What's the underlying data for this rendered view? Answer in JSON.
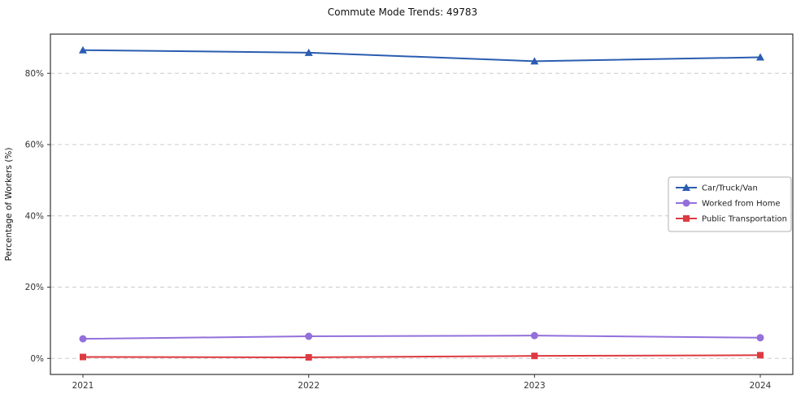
{
  "chart_data": {
    "type": "line",
    "title": "Commute Mode Trends: 49783",
    "xlabel": "",
    "ylabel": "Percentage of Workers (%)",
    "x": [
      2021,
      2022,
      2023,
      2024
    ],
    "xtick_labels": [
      "2021",
      "2022",
      "2023",
      "2024"
    ],
    "series": [
      {
        "name": "Car/Truck/Van",
        "values": [
          86.5,
          85.8,
          83.4,
          84.5
        ],
        "color": "#2a5db0",
        "marker": "triangle"
      },
      {
        "name": "Worked from Home",
        "values": [
          5.5,
          6.2,
          6.4,
          5.8
        ],
        "color": "#9370db",
        "marker": "circle"
      },
      {
        "name": "Public Transportation",
        "values": [
          0.4,
          0.3,
          0.7,
          0.9
        ],
        "color": "#dd3a41",
        "marker": "square"
      }
    ],
    "yticks": [
      0,
      20,
      40,
      60,
      80
    ],
    "ytick_labels": [
      "0%",
      "20%",
      "40%",
      "60%",
      "80%"
    ],
    "ylim": [
      -4.5,
      91
    ],
    "grid": true,
    "grid_style": "dashed",
    "legend_position": "center-right",
    "colors": {
      "grid": "#cccccc",
      "spine": "#333333",
      "tick_text": "#333333",
      "legend_border": "#b0b0b0"
    }
  }
}
